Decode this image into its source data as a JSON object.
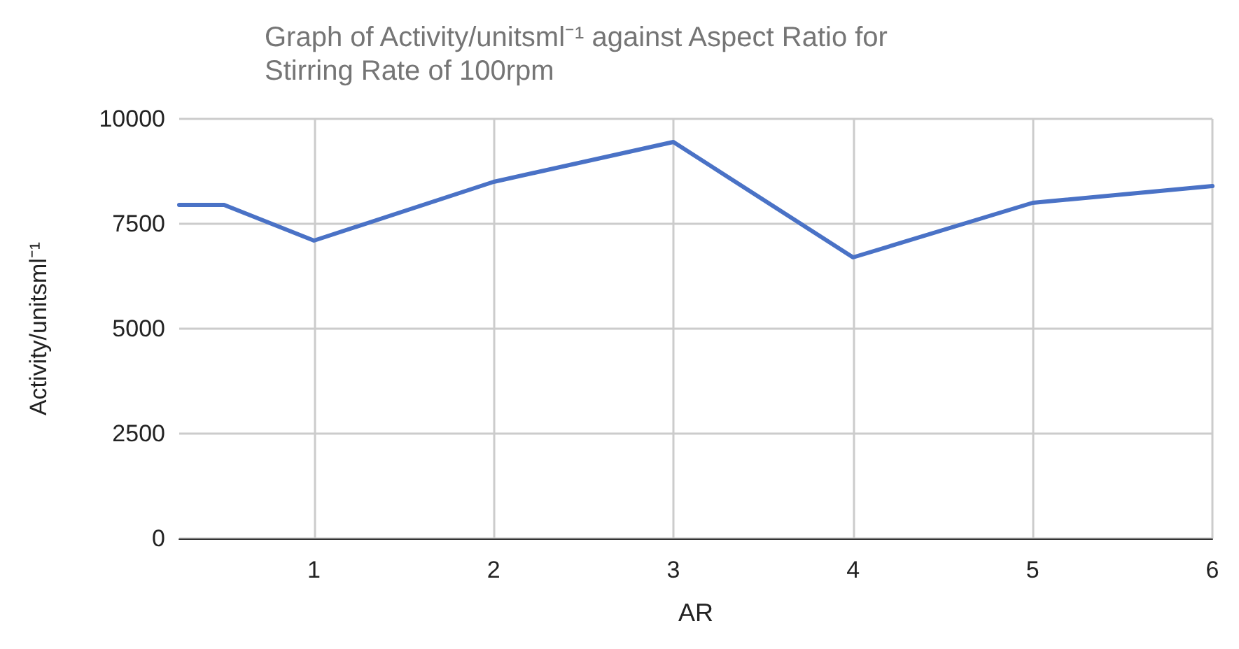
{
  "chart_data": {
    "type": "line",
    "title": "Graph of Activity/unitsml⁻¹ against Aspect Ratio for\nStirring Rate of 100rpm",
    "xlabel": "AR",
    "ylabel": "Activity/unitsml⁻¹",
    "x": [
      0.25,
      0.5,
      1,
      2,
      3,
      4,
      5,
      6
    ],
    "series": [
      {
        "color": "#4a72c6",
        "values": [
          7950,
          7950,
          7100,
          8500,
          9450,
          6700,
          8000,
          8400
        ]
      }
    ],
    "xlim": [
      0.25,
      6
    ],
    "xticks": [
      1,
      2,
      3,
      4,
      5,
      6
    ],
    "ylim": [
      0,
      10000
    ],
    "yticks": [
      0,
      2500,
      5000,
      7500,
      10000
    ],
    "grid": true,
    "marker": "none",
    "line_style": "solid"
  }
}
